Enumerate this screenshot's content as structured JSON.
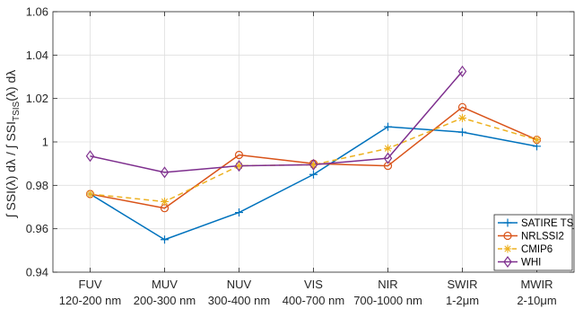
{
  "chart_data": {
    "type": "line",
    "title": "",
    "xlabel": "",
    "ylabel": {
      "before": "∫ SSI(λ) dλ  /  ∫ SSI",
      "subscript": "TSIS",
      "after": "(λ) dλ"
    },
    "categories": [
      {
        "name": "FUV",
        "range": "120-200 nm"
      },
      {
        "name": "MUV",
        "range": "200-300 nm"
      },
      {
        "name": "NUV",
        "range": "300-400 nm"
      },
      {
        "name": "VIS",
        "range": "400-700 nm"
      },
      {
        "name": "NIR",
        "range": "700-1000 nm"
      },
      {
        "name": "SWIR",
        "range": "1-2μm"
      },
      {
        "name": "MWIR",
        "range": "2-10μm"
      }
    ],
    "ylim": [
      0.94,
      1.06
    ],
    "yticks": [
      0.94,
      0.96,
      0.98,
      1,
      1.02,
      1.04,
      1.06
    ],
    "ytick_labels": [
      "0.94",
      "0.96",
      "0.98",
      "1",
      "1.02",
      "1.04",
      "1.06"
    ],
    "grid": true,
    "legend_position": "bottom-right",
    "series": [
      {
        "name": "SATIRE TS",
        "color": "#0072BD",
        "marker": "plus",
        "dash": "solid",
        "values": [
          0.976,
          0.955,
          0.9675,
          0.985,
          1.007,
          1.0045,
          0.998
        ]
      },
      {
        "name": "NRLSSI2",
        "color": "#D95319",
        "marker": "circle",
        "dash": "solid",
        "values": [
          0.976,
          0.9695,
          0.994,
          0.99,
          0.989,
          1.016,
          1.001
        ]
      },
      {
        "name": "CMIP6",
        "color": "#EDB120",
        "marker": "star",
        "dash": "dashed",
        "values": [
          0.976,
          0.9725,
          0.989,
          0.9895,
          0.997,
          1.011,
          1.001
        ]
      },
      {
        "name": "WHI",
        "color": "#7E2F8E",
        "marker": "diamond",
        "dash": "solid",
        "values": [
          0.9935,
          0.986,
          0.989,
          0.9895,
          0.9925,
          1.0325,
          null
        ]
      }
    ]
  }
}
